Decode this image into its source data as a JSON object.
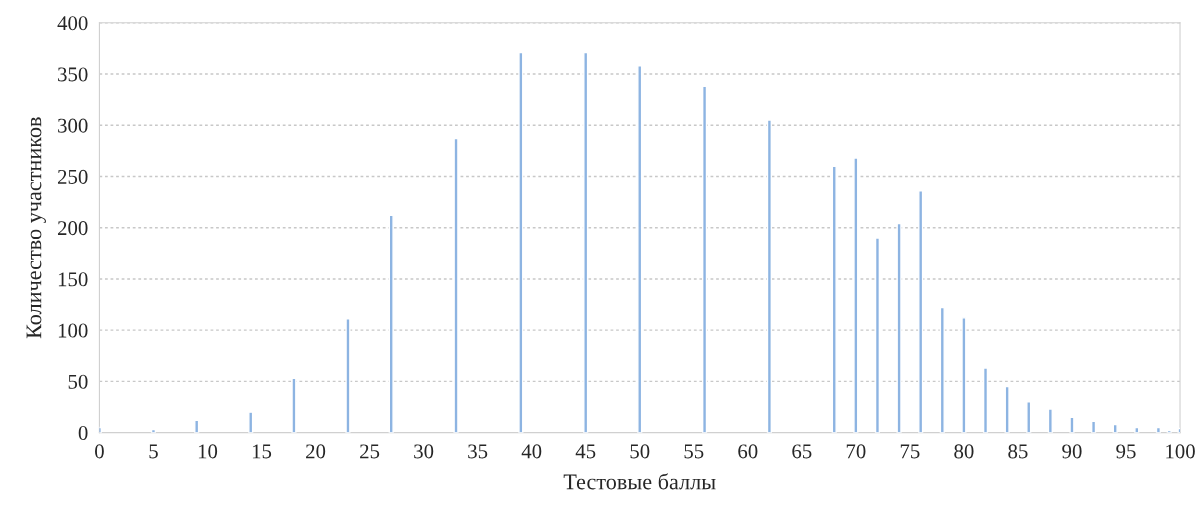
{
  "chart_data": {
    "type": "bar",
    "xlabel": "Тестовые баллы",
    "ylabel": "Количество участников",
    "x": [
      0,
      5,
      9,
      14,
      18,
      23,
      27,
      33,
      39,
      45,
      50,
      56,
      62,
      68,
      70,
      72,
      74,
      76,
      78,
      80,
      82,
      84,
      86,
      88,
      90,
      92,
      94,
      96,
      98,
      99,
      100
    ],
    "values": [
      5,
      3,
      12,
      20,
      53,
      111,
      212,
      287,
      371,
      371,
      358,
      338,
      305,
      260,
      268,
      190,
      204,
      236,
      122,
      112,
      63,
      45,
      30,
      23,
      15,
      11,
      8,
      5,
      5,
      2,
      4
    ],
    "color": "#8db4e2",
    "xlim": [
      0,
      100
    ],
    "xticks": [
      0,
      5,
      10,
      15,
      20,
      25,
      30,
      35,
      40,
      45,
      50,
      55,
      60,
      65,
      70,
      75,
      80,
      85,
      90,
      95,
      100
    ],
    "ylim": [
      0,
      400
    ],
    "yticks": [
      0,
      50,
      100,
      150,
      200,
      250,
      300,
      350,
      400
    ],
    "grid": "y"
  }
}
